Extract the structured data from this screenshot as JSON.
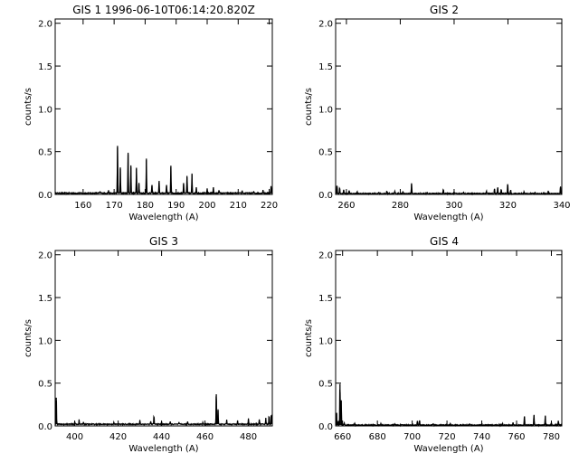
{
  "chart_data": [
    {
      "type": "line",
      "title": "GIS 1 1996-06-10T06:14:20.820Z",
      "xlabel": "Wavelength (A)",
      "ylabel": "counts/s",
      "xlim": [
        151,
        221
      ],
      "ylim": [
        0,
        2.05
      ],
      "xticks": [
        160,
        170,
        180,
        190,
        200,
        210,
        220
      ],
      "yticks": [
        0.0,
        0.5,
        1.0,
        1.5,
        2.0
      ],
      "ytick_labels": [
        "0.0",
        "0.5",
        "1.0",
        "1.5",
        "2.0"
      ],
      "grid": false,
      "baseline": 0.015,
      "peaks": [
        [
          165.5,
          0.02
        ],
        [
          168.2,
          0.03
        ],
        [
          171.1,
          0.55
        ],
        [
          172.0,
          0.3
        ],
        [
          174.5,
          0.47
        ],
        [
          175.4,
          0.32
        ],
        [
          177.2,
          0.3
        ],
        [
          178.0,
          0.12
        ],
        [
          180.4,
          0.4
        ],
        [
          182.2,
          0.1
        ],
        [
          184.5,
          0.14
        ],
        [
          186.9,
          0.1
        ],
        [
          188.3,
          0.32
        ],
        [
          192.4,
          0.12
        ],
        [
          193.5,
          0.2
        ],
        [
          195.1,
          0.23
        ],
        [
          196.5,
          0.07
        ],
        [
          200.0,
          0.05
        ],
        [
          202.0,
          0.07
        ],
        [
          203.8,
          0.04
        ],
        [
          211.3,
          0.03
        ],
        [
          215.0,
          0.02
        ],
        [
          218.0,
          0.04
        ],
        [
          220.6,
          0.08
        ]
      ]
    },
    {
      "type": "line",
      "title": "GIS 2",
      "xlabel": "Wavelength (A)",
      "ylabel": "counts/s",
      "xlim": [
        256,
        340
      ],
      "ylim": [
        0,
        2.05
      ],
      "xticks": [
        260,
        280,
        300,
        320,
        340
      ],
      "yticks": [
        0.0,
        0.5,
        1.0,
        1.5,
        2.0
      ],
      "ytick_labels": [
        "0.0",
        "0.5",
        "1.0",
        "1.5",
        "2.0"
      ],
      "grid": false,
      "baseline": 0.01,
      "peaks": [
        [
          256.5,
          0.1
        ],
        [
          257.5,
          0.07
        ],
        [
          259.0,
          0.05
        ],
        [
          261.0,
          0.04
        ],
        [
          264.0,
          0.02
        ],
        [
          272.0,
          0.02
        ],
        [
          275.0,
          0.03
        ],
        [
          278.0,
          0.03
        ],
        [
          281.0,
          0.02
        ],
        [
          284.2,
          0.12
        ],
        [
          290.0,
          0.02
        ],
        [
          296.0,
          0.05
        ],
        [
          300.0,
          0.02
        ],
        [
          303.5,
          0.02
        ],
        [
          312.0,
          0.03
        ],
        [
          315.0,
          0.06
        ],
        [
          316.2,
          0.08
        ],
        [
          317.5,
          0.05
        ],
        [
          319.9,
          0.12
        ],
        [
          321.0,
          0.04
        ],
        [
          326.0,
          0.02
        ],
        [
          330.0,
          0.02
        ],
        [
          335.0,
          0.03
        ],
        [
          339.5,
          0.08
        ]
      ]
    },
    {
      "type": "line",
      "title": "GIS 3",
      "xlabel": "Wavelength (A)",
      "ylabel": "counts/s",
      "xlim": [
        391,
        491
      ],
      "ylim": [
        0,
        2.05
      ],
      "xticks": [
        400,
        420,
        440,
        460,
        480
      ],
      "yticks": [
        0.0,
        0.5,
        1.0,
        1.5,
        2.0
      ],
      "ytick_labels": [
        "0.0",
        "0.5",
        "1.0",
        "1.5",
        "2.0"
      ],
      "grid": false,
      "baseline": 0.02,
      "peaks": [
        [
          391.5,
          0.33
        ],
        [
          400.0,
          0.03
        ],
        [
          402.0,
          0.05
        ],
        [
          404.0,
          0.03
        ],
        [
          418.0,
          0.02
        ],
        [
          430.0,
          0.05
        ],
        [
          435.0,
          0.04
        ],
        [
          436.5,
          0.1
        ],
        [
          440.0,
          0.03
        ],
        [
          444.0,
          0.03
        ],
        [
          448.0,
          0.02
        ],
        [
          452.0,
          0.03
        ],
        [
          459.0,
          0.02
        ],
        [
          465.2,
          0.37
        ],
        [
          466.0,
          0.18
        ],
        [
          470.0,
          0.05
        ],
        [
          475.0,
          0.05
        ],
        [
          480.0,
          0.07
        ],
        [
          485.0,
          0.06
        ],
        [
          488.0,
          0.07
        ],
        [
          489.5,
          0.1
        ],
        [
          490.5,
          0.12
        ]
      ]
    },
    {
      "type": "line",
      "title": "GIS 4",
      "xlabel": "Wavelength (A)",
      "ylabel": "counts/s",
      "xlim": [
        656,
        786
      ],
      "ylim": [
        0,
        2.05
      ],
      "xticks": [
        660,
        680,
        700,
        720,
        740,
        760,
        780
      ],
      "yticks": [
        0.0,
        0.5,
        1.0,
        1.5,
        2.0
      ],
      "ytick_labels": [
        "0.0",
        "0.5",
        "1.0",
        "1.5",
        "2.0"
      ],
      "grid": false,
      "baseline": 0.01,
      "peaks": [
        [
          656.5,
          0.15
        ],
        [
          657.5,
          0.05
        ],
        [
          658.5,
          0.49
        ],
        [
          659.2,
          0.3
        ],
        [
          661.0,
          0.03
        ],
        [
          667.0,
          0.02
        ],
        [
          682.0,
          0.02
        ],
        [
          690.0,
          0.02
        ],
        [
          703.0,
          0.05
        ],
        [
          704.2,
          0.06
        ],
        [
          712.0,
          0.02
        ],
        [
          722.0,
          0.02
        ],
        [
          733.0,
          0.02
        ],
        [
          740.0,
          0.02
        ],
        [
          752.0,
          0.02
        ],
        [
          758.0,
          0.03
        ],
        [
          764.5,
          0.11
        ],
        [
          770.0,
          0.12
        ],
        [
          776.5,
          0.11
        ],
        [
          780.0,
          0.03
        ],
        [
          784.0,
          0.05
        ]
      ]
    }
  ]
}
